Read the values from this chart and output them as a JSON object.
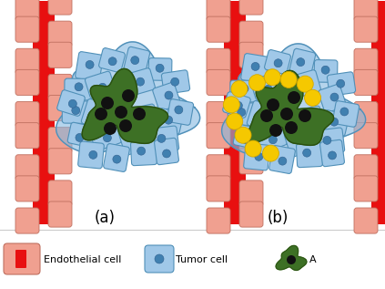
{
  "bg_color": "#ffffff",
  "vessel_color_dark": "#e81010",
  "vessel_color_light": "#f0a090",
  "vessel_cell_edge": "#c07060",
  "tumor_mass_color": "#3d7025",
  "tumor_mass_edge": "#2a5010",
  "tumor_cell_fill": "#85b8e0",
  "tumor_cell_fill2": "#a0c8e8",
  "tumor_cell_edge": "#5090b8",
  "tumor_nucleus_color": "#4080b0",
  "cancer_nucleus_color": "#111111",
  "yellow_dot_color": "#f5c800",
  "yellow_dot_edge": "#d4a800",
  "label_a": "(a)",
  "label_b": "(b)",
  "legend_text_1": "Endothelial cell",
  "legend_text_2": "Tumor cell",
  "legend_text_3": "A"
}
